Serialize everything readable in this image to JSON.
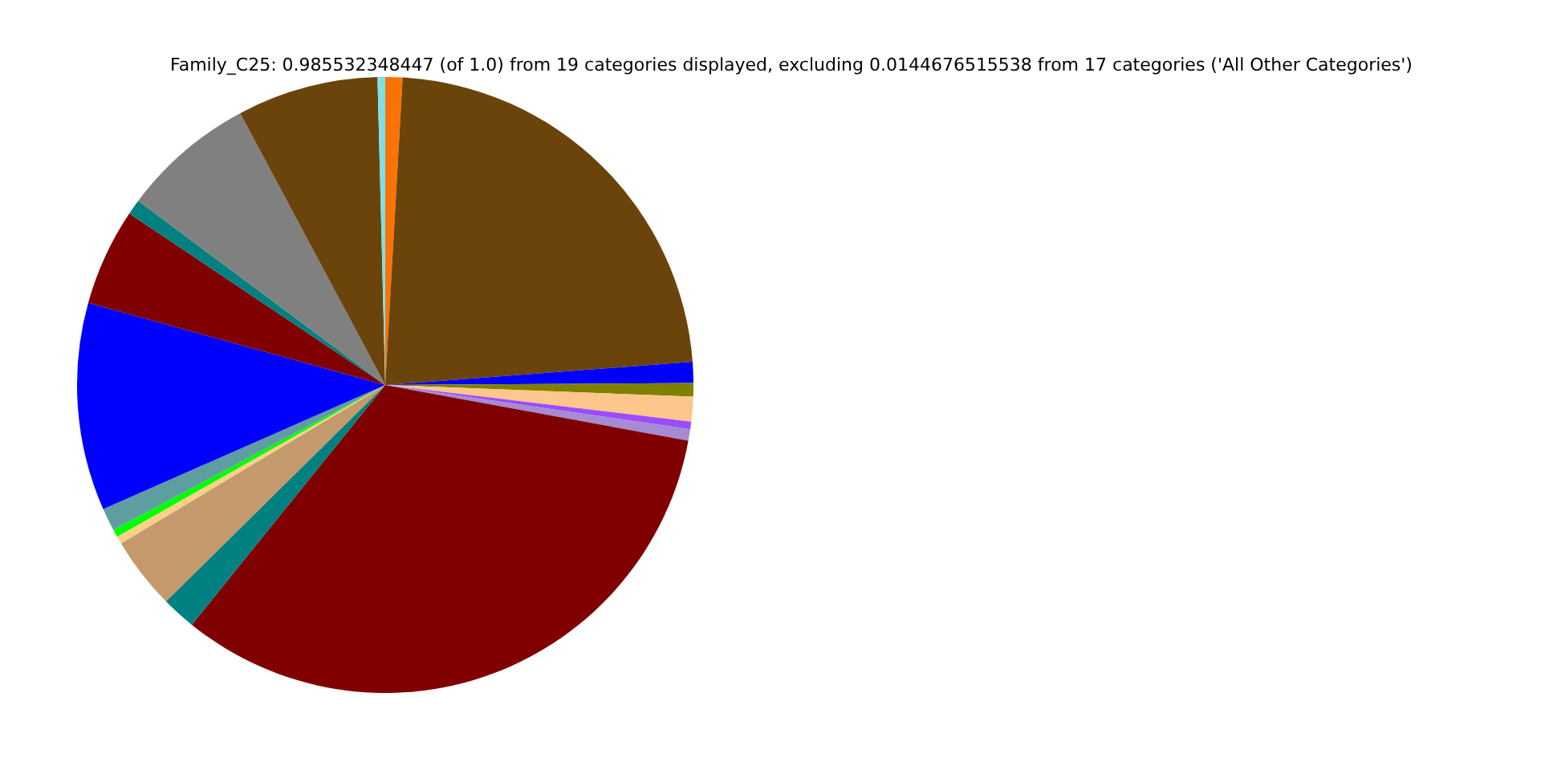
{
  "chart_data": {
    "type": "pie",
    "title": "Family_C25: 0.985532348447 (of 1.0) from 19 categories displayed, excluding 0.0144676515538 from 17 categories ('All Other Categories')",
    "categories": [
      null,
      null,
      null,
      null,
      null,
      null,
      null,
      null,
      null,
      null,
      null,
      null,
      null,
      null,
      null,
      null,
      null,
      null,
      null
    ],
    "values": [
      0.9,
      22.9,
      1.1,
      0.7,
      1.3,
      0.4,
      0.6,
      32.9,
      1.8,
      3.8,
      0.4,
      0.4,
      1.2,
      10.9,
      5.1,
      0.8,
      7.0,
      7.4,
      0.4
    ],
    "colors": [
      "#f97306",
      "#6a440b",
      "#0000ff",
      "#808000",
      "#fdc68a",
      "#9b4dff",
      "#a58bd2",
      "#800000",
      "#008080",
      "#c49a6c",
      "#ffd08a",
      "#00ff00",
      "#5f9ea0",
      "#0000ff",
      "#800000",
      "#008080",
      "#808080",
      "#6a440b",
      "#7fdfe6"
    ]
  }
}
